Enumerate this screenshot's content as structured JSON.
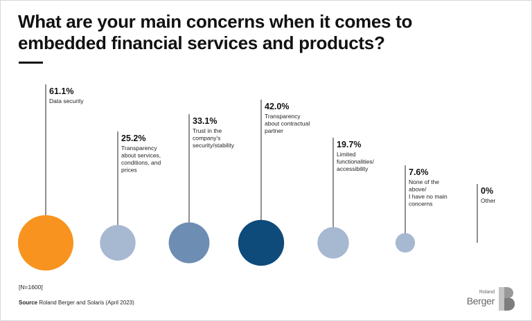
{
  "title": "What are your main concerns when it comes to embedded financial services and products?",
  "footer": {
    "sample": "[N=1600]",
    "source_label": "Source",
    "source_text": "Roland Berger and Solaris (April 2023)"
  },
  "logo": {
    "line1": "Roland",
    "line2": "Berger"
  },
  "chart_data": {
    "type": "bubble",
    "title": "What are your main concerns when it comes to embedded financial services and products?",
    "unit": "%",
    "categories": [
      "Data security",
      "Transparency about services, conditions, and prices",
      "Trust in the company's security/stability",
      "Transparency about contractual partner",
      "Limited functionalities/ accessibility",
      "None of the above/ I have no main concerns",
      "Other"
    ],
    "values": [
      61.1,
      25.2,
      33.1,
      42.0,
      19.7,
      7.6,
      0
    ],
    "value_labels": [
      "61.1%",
      "25.2%",
      "33.1%",
      "42.0%",
      "19.7%",
      "7.6%",
      "0%"
    ],
    "label_lines": [
      [
        "Data security"
      ],
      [
        "Transparency",
        "about services,",
        "conditions, and",
        "prices"
      ],
      [
        "Trust in the",
        "company's",
        "security/stability"
      ],
      [
        "Transparency",
        "about contractual",
        "partner"
      ],
      [
        "Limited",
        "functionalities/",
        "accessibility"
      ],
      [
        "None of the",
        "above/",
        "I have no main",
        "concerns"
      ],
      [
        "Other"
      ]
    ],
    "colors": [
      "#F7931E",
      "#A7B8D1",
      "#6E8DB3",
      "#0E4A7A",
      "#A7B8D1",
      "#A7B8D1",
      "#A7B8D1"
    ],
    "sample_size": "[N=1600]"
  }
}
